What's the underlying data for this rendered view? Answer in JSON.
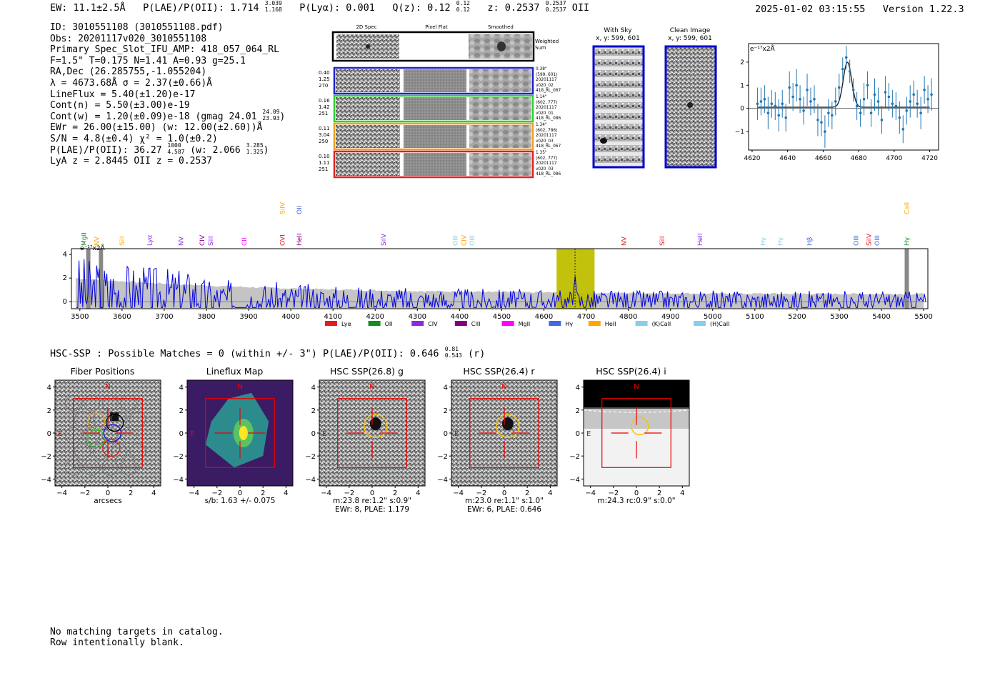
{
  "header": {
    "ew": "EW: 11.1±2.5Å",
    "plae": "P(LAE)/P(OII): 1.714",
    "plae_hi": "3.039",
    "plae_lo": "1.168",
    "plya": "P(Lyα): 0.001",
    "qz": "Q(z): 0.12",
    "qz_hi": "0.12",
    "qz_lo": "0.12",
    "z": "z: 0.2537",
    "z_hi": "0.2537",
    "z_lo": "0.2537",
    "z_line": "OII",
    "timestamp": "2025-01-02 03:15:55",
    "version": "Version 1.22.3"
  },
  "info": {
    "id": "ID: 3010551108 (3010551108.pdf)",
    "obs": "Obs: 20201117v020_3010551108",
    "slot": "Primary Spec_Slot_IFU_AMP: 418_057_064_RL",
    "fiber": "F=1.5\"  T=0.175  N=1.41  A=0.93  g=25.1",
    "radec": "RA,Dec (26.285755,-1.055204)",
    "lambda": "λ = 4673.68Å  σ = 2.37(±0.66)Å",
    "lineflux": "LineFlux = 5.40(±1.20)e-17",
    "contn": "Cont(n) = 5.50(±3.00)e-19",
    "contw": "Cont(w) = 1.20(±0.09)e-18 (gmag 24.01",
    "gmag_hi": "24.09",
    "gmag_lo": "23.93",
    "ewr": "EWr = 26.00(±15.00) (w: 12.00(±2.60))Å",
    "sn": "S/N = 4.8(±0.4)  χ² = 1.0(±0.2)",
    "plae2": "P(LAE)/P(OII): 36.27",
    "plae2_hi": "1000",
    "plae2_lo": "4.587",
    "plae2_w": "(w: 2.066",
    "plae2_w_hi": "3.285",
    "plae2_w_lo": "1.325",
    "z_pair": "LyA z = 2.8445  OII z = 0.2537"
  },
  "cutouts": {
    "col_titles": [
      "2D Spec",
      "Pixel Flat",
      "Smoothed"
    ],
    "weighted_label": "Weighted Sum",
    "rows": [
      {
        "left": [
          "0.40",
          "1.25",
          "270"
        ],
        "right": [
          "0.38\"",
          "(599, 601)",
          "20201117",
          "v020_02",
          "418_RL_067"
        ],
        "color": "#1f1fd0"
      },
      {
        "left": [
          "0.16",
          "1.42",
          "251"
        ],
        "right": [
          "1.14\"",
          "(602, 777)",
          "20201117",
          "v020_01",
          "418_RL_086"
        ],
        "color": "#2ed12e"
      },
      {
        "left": [
          "0.11",
          "3.04",
          "250"
        ],
        "right": [
          "1.34\"",
          "(602, 786)",
          "20201117",
          "v020_03",
          "418_RL_067"
        ],
        "color": "#f0a020"
      },
      {
        "left": [
          "0.10",
          "1.11",
          "251"
        ],
        "right": [
          "1.35\"",
          "(602, 777)",
          "20201117",
          "v020_03",
          "418_RL_086"
        ],
        "color": "#e02020"
      }
    ]
  },
  "sky": {
    "with_sky_title": "With Sky",
    "with_sky_coords": "x, y: 599, 601",
    "clean_title": "Clean Image",
    "clean_coords": "x, y: 599, 601"
  },
  "line_fit": {
    "unit_label": "e⁻¹⁷x2Å",
    "x_ticks": [
      "4620",
      "4640",
      "4660",
      "4680",
      "4700",
      "4720"
    ],
    "y_ticks": [
      "2",
      "1",
      "0",
      "−1"
    ]
  },
  "spectrum": {
    "unit_label": "e⁻¹⁷x2Å",
    "x_ticks": [
      "3500",
      "3600",
      "3700",
      "3800",
      "3900",
      "4000",
      "4100",
      "4200",
      "4300",
      "4400",
      "4500",
      "4600",
      "4700",
      "4800",
      "4900",
      "5000",
      "5100",
      "5200",
      "5300",
      "5400",
      "5500"
    ],
    "y_ticks": [
      "4",
      "2",
      "0"
    ],
    "legend": [
      {
        "label": "Lyα",
        "color": "#e41a1c"
      },
      {
        "label": "OII",
        "color": "#138e1c"
      },
      {
        "label": "CIV",
        "color": "#8a2be2"
      },
      {
        "label": "CIII",
        "color": "#800080"
      },
      {
        "label": "MgII",
        "color": "#ff00ff"
      },
      {
        "label": "Hγ",
        "color": "#4169e1"
      },
      {
        "label": "HeII",
        "color": "#ffa500"
      },
      {
        "label": "(K)CaII",
        "color": "#87ceeb"
      },
      {
        "label": "(H)CaII",
        "color": "#87ceeb"
      }
    ],
    "line_labels": [
      {
        "text": "MgII",
        "color": "#138e1c",
        "w": 3510,
        "row": 0
      },
      {
        "text": "NV",
        "color": "#ffa500",
        "w": 3540,
        "row": 0
      },
      {
        "text": "SiII",
        "color": "#ffa500",
        "w": 3600,
        "row": 0
      },
      {
        "text": "Lyα",
        "color": "#8a2be2",
        "w": 3665,
        "row": 0
      },
      {
        "text": "NV",
        "color": "#8a2be2",
        "w": 3740,
        "row": 0
      },
      {
        "text": "CIV",
        "color": "#800080",
        "w": 3790,
        "row": 0
      },
      {
        "text": "SiII",
        "color": "#8a2be2",
        "w": 3810,
        "row": 0
      },
      {
        "text": "CII",
        "color": "#ff00ff",
        "w": 3890,
        "row": 0
      },
      {
        "text": "OVI",
        "color": "#e41a1c",
        "w": 3980,
        "row": 0
      },
      {
        "text": "SiIV",
        "color": "#ffa500",
        "w": 3980,
        "row": 1
      },
      {
        "text": "HeII",
        "color": "#800080",
        "w": 4020,
        "row": 0
      },
      {
        "text": "OII",
        "color": "#4169e1",
        "w": 4020,
        "row": 1
      },
      {
        "text": "SiIV",
        "color": "#8a2be2",
        "w": 4220,
        "row": 0
      },
      {
        "text": "OIII",
        "color": "#87ceeb",
        "w": 4390,
        "row": 0
      },
      {
        "text": "CIV",
        "color": "#ffa500",
        "w": 4410,
        "row": 0
      },
      {
        "text": "OIII",
        "color": "#87ceeb",
        "w": 4430,
        "row": 0
      },
      {
        "text": "NV",
        "color": "#e41a1c",
        "w": 4790,
        "row": 0
      },
      {
        "text": "SiII",
        "color": "#e41a1c",
        "w": 4880,
        "row": 0
      },
      {
        "text": "HeII",
        "color": "#8a2be2",
        "w": 4970,
        "row": 0
      },
      {
        "text": "Hγ",
        "color": "#87ceeb",
        "w": 5120,
        "row": 0
      },
      {
        "text": "Hγ",
        "color": "#87ceeb",
        "w": 5160,
        "row": 0
      },
      {
        "text": "Hβ",
        "color": "#4169e1",
        "w": 5230,
        "row": 0
      },
      {
        "text": "OIII",
        "color": "#4169e1",
        "w": 5340,
        "row": 0
      },
      {
        "text": "SiIV",
        "color": "#e41a1c",
        "w": 5370,
        "row": 0
      },
      {
        "text": "OIII",
        "color": "#4169e1",
        "w": 5390,
        "row": 0
      },
      {
        "text": "Hγ",
        "color": "#138e1c",
        "w": 5460,
        "row": 0
      },
      {
        "text": "CaII",
        "color": "#ffa500",
        "w": 5460,
        "row": 1
      }
    ]
  },
  "hsc": {
    "summary": "HSC-SSP : Possible Matches = 0 (within +/- 3\")  P(LAE)/P(OII): 0.646",
    "summary_hi": "0.81",
    "summary_lo": "0.543",
    "summary_band": "(r)",
    "panels": [
      {
        "title": "Fiber Positions",
        "caption1": "arcsecs",
        "caption2": ""
      },
      {
        "title": "Lineflux Map",
        "caption1": "s/b: 1.63 +/- 0.075",
        "caption2": ""
      },
      {
        "title": "HSC SSP(26.8) g",
        "caption1": "m:23.8  re:1.2\"  s:0.9\"",
        "caption2": "EWr: 8, PLAE: 1.179"
      },
      {
        "title": "HSC SSP(26.4) r",
        "caption1": "m:23.0  re:1.1\"  s:1.0\"",
        "caption2": "EWr: 6, PLAE: 0.646"
      },
      {
        "title": "HSC SSP(26.4) i",
        "caption1": "m:24.3 rc:0.9\"  s:0.0\"",
        "caption2": ""
      }
    ],
    "x_ticks": [
      "−4",
      "−2",
      "0",
      "2",
      "4"
    ],
    "y_ticks": [
      "4",
      "2",
      "0",
      "−2",
      "−4"
    ],
    "north": "N",
    "east": "E"
  },
  "footer": {
    "line1": "No matching targets in catalog.",
    "line2": "Row intentionally blank."
  },
  "chart_data": [
    {
      "type": "scatter",
      "title": "",
      "xlabel": "",
      "ylabel": "e⁻¹⁷x2Å",
      "xlim": [
        4618,
        4725
      ],
      "ylim": [
        -1.8,
        2.8
      ],
      "fit": {
        "center": 4673.68,
        "sigma": 2.37,
        "peak": 1.95,
        "continuum": 0.05
      },
      "x": [
        4623,
        4625,
        4627,
        4629,
        4631,
        4633,
        4635,
        4637,
        4639,
        4641,
        4643,
        4645,
        4647,
        4649,
        4651,
        4653,
        4655,
        4657,
        4659,
        4661,
        4663,
        4665,
        4667,
        4669,
        4671,
        4673,
        4675,
        4677,
        4679,
        4681,
        4683,
        4685,
        4687,
        4689,
        4691,
        4693,
        4695,
        4697,
        4699,
        4701,
        4703,
        4705,
        4707,
        4709,
        4711,
        4713,
        4715,
        4717,
        4719,
        4721
      ],
      "y": [
        0.2,
        0.3,
        0.4,
        -0.2,
        0.2,
        0.1,
        -0.3,
        0.2,
        -0.4,
        0.9,
        0.5,
        1.0,
        0.4,
        -0.1,
        0.8,
        0.3,
        0.4,
        -0.5,
        -0.6,
        -1.0,
        -0.2,
        -0.3,
        0.3,
        0.9,
        1.7,
        2.2,
        1.6,
        0.8,
        0.1,
        -0.2,
        0.4,
        1.0,
        -0.2,
        0.6,
        0.3,
        -0.5,
        0.7,
        0.5,
        0.2,
        0.1,
        -0.4,
        -0.9,
        -0.1,
        0.3,
        0.6,
        0.2,
        -0.2,
        0.8,
        0.4,
        0.6
      ],
      "yerr": [
        0.7,
        0.6,
        0.6,
        0.7,
        0.6,
        0.6,
        0.7,
        0.6,
        0.6,
        0.7,
        0.6,
        0.7,
        0.6,
        0.6,
        0.7,
        0.6,
        0.6,
        0.7,
        0.6,
        0.7,
        0.6,
        0.6,
        0.6,
        0.6,
        0.5,
        0.5,
        0.5,
        0.5,
        0.6,
        0.6,
        0.7,
        0.6,
        0.6,
        0.7,
        0.6,
        0.6,
        0.7,
        0.6,
        0.6,
        0.6,
        0.7,
        0.6,
        0.6,
        0.7,
        0.6,
        0.6,
        0.7,
        0.6,
        0.6,
        0.7
      ]
    },
    {
      "type": "line",
      "title": "",
      "xlabel": "",
      "ylabel": "e⁻¹⁷x2Å",
      "xlim": [
        3480,
        5510
      ],
      "ylim": [
        -0.6,
        4.5
      ],
      "highlight_band": [
        4630,
        4720
      ],
      "emission_line": 4673.68,
      "masked_regions": [
        [
          3515,
          3525
        ],
        [
          3545,
          3555
        ],
        [
          5455,
          5465
        ]
      ],
      "noise_envelope_start": 1.4,
      "noise_envelope_end": 0.55,
      "sampling_step": 6
    }
  ]
}
